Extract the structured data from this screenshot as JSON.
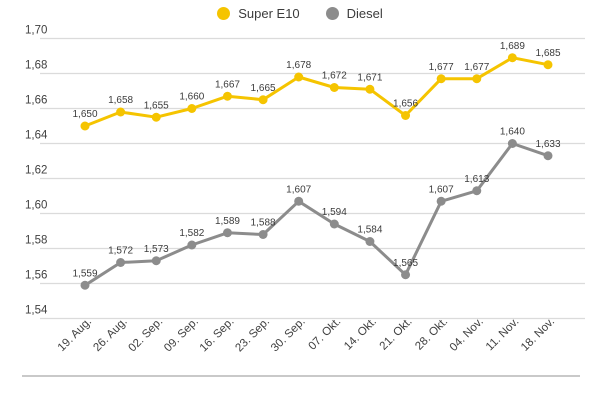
{
  "colors": {
    "super_e10": "#F5C400",
    "diesel": "#8C8C8C",
    "grid": "#DBDBDB",
    "axis_text": "#3F3F3F",
    "label_text": "#3C3C3C",
    "divider": "#C9C9C9",
    "background": "#FFFFFF"
  },
  "chart_data": {
    "type": "line",
    "title": "",
    "xlabel": "",
    "ylabel": "",
    "decimal_separator": ",",
    "grid": true,
    "legend_position": "top-center",
    "value_labels": true,
    "axis": {
      "y_min": 1.54,
      "y_max": 1.7,
      "y_step": 0.02
    },
    "ylim": [
      1.54,
      1.7
    ],
    "yticks": [
      1.7,
      1.68,
      1.66,
      1.64,
      1.62,
      1.6,
      1.58,
      1.56,
      1.54
    ],
    "categories": [
      "19. Aug.",
      "26. Aug.",
      "02. Sep.",
      "09. Sep.",
      "16. Sep.",
      "23. Sep.",
      "30. Sep.",
      "07. Okt.",
      "14. Okt.",
      "21. Okt.",
      "28. Okt.",
      "04. Nov.",
      "11. Nov.",
      "18. Nov."
    ],
    "series": [
      {
        "name": "Super E10",
        "color": "#F5C400",
        "values": [
          1.65,
          1.658,
          1.655,
          1.66,
          1.667,
          1.665,
          1.678,
          1.672,
          1.671,
          1.656,
          1.677,
          1.677,
          1.689,
          1.685
        ]
      },
      {
        "name": "Diesel",
        "color": "#8C8C8C",
        "values": [
          1.559,
          1.572,
          1.573,
          1.582,
          1.589,
          1.588,
          1.607,
          1.594,
          1.584,
          1.565,
          1.607,
          1.613,
          1.64,
          1.633
        ]
      }
    ]
  }
}
